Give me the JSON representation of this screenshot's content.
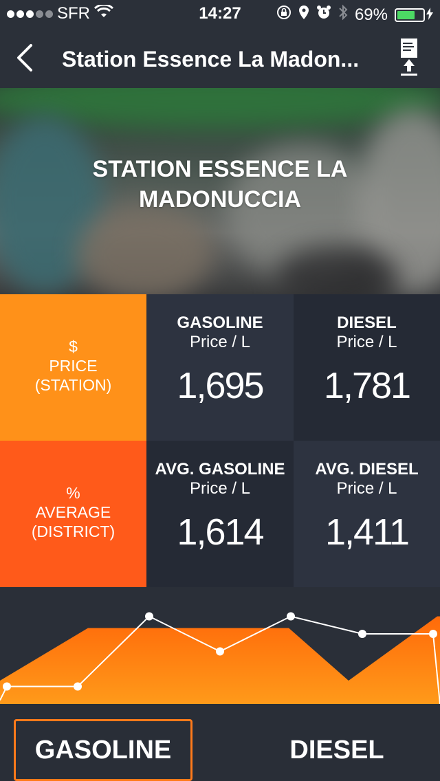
{
  "status_bar": {
    "carrier": "SFR",
    "time": "14:27",
    "battery_percent": "69%",
    "battery_level": 0.69,
    "signal_bars_on": 3,
    "signal_bars_total": 5
  },
  "nav": {
    "title": "Station Essence La Madon..."
  },
  "hero": {
    "title": "STATION ESSENCE LA MADONUCCIA"
  },
  "price_table": {
    "row_station": {
      "icon": "$",
      "label_line1": "PRICE",
      "label_line2": "(STATION)",
      "gasoline": {
        "label": "GASOLINE",
        "unit": "Price / L",
        "value": "1,695"
      },
      "diesel": {
        "label": "DIESEL",
        "unit": "Price / L",
        "value": "1,781"
      }
    },
    "row_district": {
      "icon": "%",
      "label_line1": "AVERAGE",
      "label_line2": "(DISTRICT)",
      "gasoline": {
        "label": "AVG. GASOLINE",
        "unit": "Price / L",
        "value": "1,614"
      },
      "diesel": {
        "label": "AVG. DIESEL",
        "unit": "Price / L",
        "value": "1,411"
      }
    }
  },
  "chart_data": {
    "type": "line",
    "xlabel": "",
    "ylabel": "",
    "ylim": [
      0,
      10
    ],
    "series": [
      {
        "values": [
          1.5,
          1.5,
          7.5,
          4.5,
          7.5,
          6.0,
          6.0
        ]
      },
      {
        "type": "area",
        "values": [
          2.0,
          6.5,
          6.5,
          6.5,
          6.5,
          2.0,
          7.5,
          7.5
        ]
      }
    ]
  },
  "tabs": {
    "gasoline_label": "GASOLINE",
    "diesel_label": "DIESEL",
    "selected": "GASOLINE"
  },
  "colors": {
    "orange_light": "#ff9119",
    "orange_dark": "#ff5a1a",
    "cell_dark": "#2d3340",
    "cell_darker": "#252a35",
    "background": "#2a2f38"
  }
}
